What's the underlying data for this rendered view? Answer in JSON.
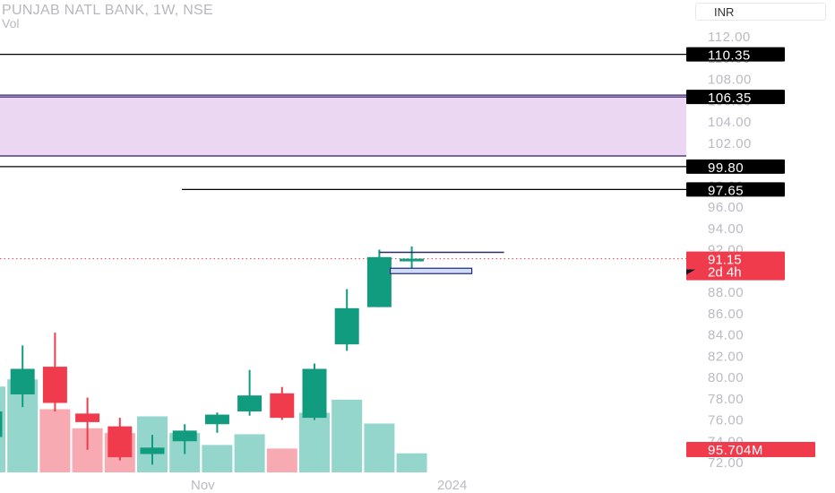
{
  "header": {
    "title": "PUNJAB NATL BANK, 1W, NSE",
    "volume_label": "Vol",
    "currency": "INR"
  },
  "colors": {
    "up": "#119b7f",
    "down": "#f03b4c",
    "vol_up": "#94d6cc",
    "vol_down": "#f7aab1",
    "zone_fill": "#ecd7f2",
    "zone_border": "#311a6b",
    "level_line": "#000000",
    "last_price": "#f03b4c",
    "axis_text": "#131722"
  },
  "chart_data": {
    "type": "candlestick",
    "y_axis": {
      "ylim": [
        71.6,
        115.0
      ],
      "ticks": [
        "72.00",
        "74.00",
        "76.00",
        "78.00",
        "80.00",
        "82.00",
        "84.00",
        "86.00",
        "88.00",
        "90.00",
        "92.00",
        "94.00",
        "96.00",
        "98.00",
        "100.00",
        "102.00",
        "104.00",
        "106.00",
        "108.00",
        "110.00",
        "112.00"
      ]
    },
    "x_axis": {
      "labels": [
        "Nov",
        "2024"
      ]
    },
    "candles": [
      {
        "o": 74.4,
        "h": 78.1,
        "l": 73.6,
        "c": 76.8,
        "vol": 0.72
      },
      {
        "o": 78.4,
        "h": 83.0,
        "l": 77.2,
        "c": 80.8,
        "vol": 0.78
      },
      {
        "o": 81.0,
        "h": 84.2,
        "l": 76.8,
        "c": 77.6,
        "vol": 0.53
      },
      {
        "o": 76.6,
        "h": 78.1,
        "l": 73.2,
        "c": 75.8,
        "vol": 0.37
      },
      {
        "o": 75.4,
        "h": 76.2,
        "l": 72.2,
        "c": 72.5,
        "vol": 0.33
      },
      {
        "o": 72.8,
        "h": 74.6,
        "l": 71.8,
        "c": 73.4,
        "vol": 0.47
      },
      {
        "o": 74.0,
        "h": 75.6,
        "l": 72.8,
        "c": 75.0,
        "vol": 0.33
      },
      {
        "o": 75.6,
        "h": 76.7,
        "l": 74.8,
        "c": 76.5,
        "vol": 0.23
      },
      {
        "o": 76.8,
        "h": 80.7,
        "l": 76.4,
        "c": 78.3,
        "vol": 0.32
      },
      {
        "o": 78.5,
        "h": 79.1,
        "l": 76.0,
        "c": 76.2,
        "vol": 0.2
      },
      {
        "o": 76.2,
        "h": 81.3,
        "l": 76.0,
        "c": 80.8,
        "vol": 0.5
      },
      {
        "o": 83.1,
        "h": 88.3,
        "l": 82.5,
        "c": 86.5,
        "vol": 0.61
      },
      {
        "o": 86.6,
        "h": 92.0,
        "l": 86.6,
        "c": 91.3,
        "vol": 0.41
      },
      {
        "o": 90.9,
        "h": 92.3,
        "l": 90.2,
        "c": 91.15,
        "vol": 0.16
      }
    ],
    "levels": [
      "110.35",
      "99.80",
      "97.65"
    ],
    "zone": {
      "top": 106.35,
      "bottom": 100.8,
      "label": "106.35"
    },
    "last_price": {
      "value": "91.15",
      "countdown": "2d 4h"
    },
    "volume_label": "95.704M",
    "markers": [
      {
        "kind": "line",
        "price": 91.75
      },
      {
        "kind": "box",
        "price": 90.0
      }
    ]
  }
}
